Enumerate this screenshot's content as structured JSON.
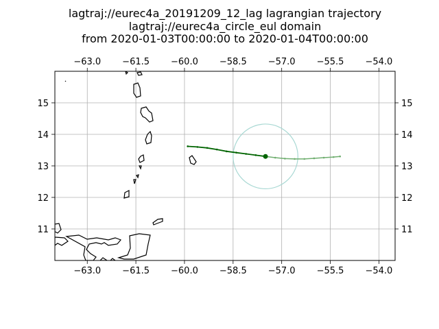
{
  "chart_data": {
    "type": "line",
    "title": [
      "lagtraj://eurec4a_20191209_12_lag lagrangian trajectory",
      "lagtraj://eurec4a_circle_eul domain",
      "from 2020-01-03T00:00:00 to 2020-01-04T00:00:00"
    ],
    "xlabel": "",
    "ylabel": "",
    "xlim": [
      -64.0,
      -53.5
    ],
    "ylim": [
      10.0,
      16.0
    ],
    "x_ticks": [
      -63.0,
      -61.5,
      -60.0,
      -58.5,
      -57.0,
      -55.5,
      -54.0
    ],
    "x_tick_labels": [
      "−63.0",
      "−61.5",
      "−60.0",
      "−58.5",
      "−57.0",
      "−55.5",
      "−54.0"
    ],
    "y_ticks": [
      11,
      12,
      13,
      14,
      15
    ],
    "y_tick_labels": [
      "11",
      "12",
      "13",
      "14",
      "15"
    ],
    "grid": true,
    "series": [
      {
        "color": "#006400",
        "x": [
          -59.9,
          -59.6,
          -59.3,
          -59.0,
          -58.7,
          -58.4,
          -58.1,
          -57.8,
          -57.5
        ],
        "y": [
          13.62,
          13.6,
          13.57,
          13.52,
          13.46,
          13.42,
          13.38,
          13.34,
          13.3
        ]
      },
      {
        "color": "#6fae6f",
        "x": [
          -57.5,
          -57.2,
          -56.9,
          -56.6,
          -56.3,
          -56.0,
          -55.7,
          -55.4,
          -55.2
        ],
        "y": [
          13.3,
          13.26,
          13.23,
          13.22,
          13.22,
          13.24,
          13.26,
          13.28,
          13.3
        ]
      }
    ],
    "current_point": {
      "x": -57.5,
      "y": 13.3,
      "color": "#006400"
    },
    "domain_circle": {
      "center_x": -57.5,
      "center_y": 13.3,
      "radius_deg": 1.0,
      "color": "#a8d8d3"
    }
  }
}
